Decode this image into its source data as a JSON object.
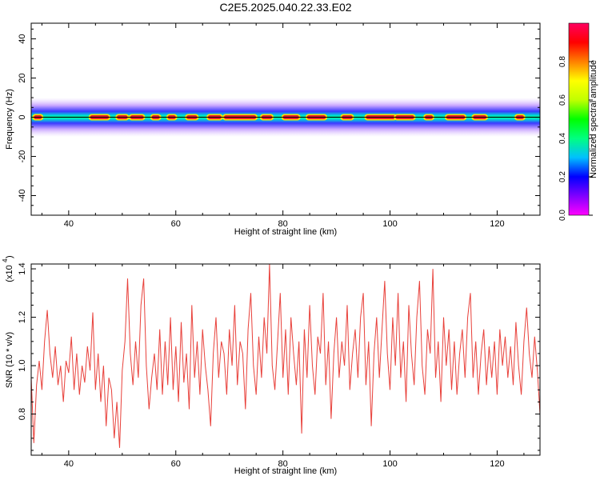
{
  "title": "C2E5.2025.040.22.33.E02",
  "chart_data": [
    {
      "type": "heatmap",
      "xlabel": "Height of straight line (km)",
      "ylabel": "Frequency (Hz)",
      "xlim": [
        33,
        128
      ],
      "ylim": [
        -50,
        48
      ],
      "xticks": [
        40,
        60,
        80,
        100,
        120
      ],
      "yticks": [
        -40,
        -20,
        0,
        20,
        40
      ],
      "band_center_hz": 0,
      "band_halfwidth_hz": 4,
      "hot_segments_km": [
        [
          33.5,
          35
        ],
        [
          44,
          47.5
        ],
        [
          49,
          51
        ],
        [
          51.5,
          54
        ],
        [
          55.5,
          57
        ],
        [
          58.5,
          60
        ],
        [
          62,
          64
        ],
        [
          66,
          68.5
        ],
        [
          69,
          75
        ],
        [
          76,
          78
        ],
        [
          80,
          83
        ],
        [
          84.5,
          88
        ],
        [
          91,
          93
        ],
        [
          95.5,
          101
        ],
        [
          101,
          104.5
        ],
        [
          106.5,
          108
        ],
        [
          110.5,
          114
        ],
        [
          115.5,
          118
        ],
        [
          123.5,
          125
        ]
      ],
      "colorbar": {
        "label": "Normalized spectral amplitude",
        "range": [
          0,
          1
        ],
        "ticks": [
          "0.0",
          "0.2",
          "0.4",
          "0.6",
          "0.8"
        ],
        "colors": [
          "#ff00ff",
          "#8000ff",
          "#0000ff",
          "#00c0ff",
          "#00ff80",
          "#00ff00",
          "#c0ff00",
          "#ffff00",
          "#ff8000",
          "#ff0000",
          "#ff0060"
        ]
      }
    },
    {
      "type": "line",
      "xlabel": "Height of straight line (km)",
      "ylabel": "SNR (10 * v/v)",
      "ylabel_exponent": "(x10",
      "exponent_power": "4",
      "xlim": [
        33,
        128
      ],
      "ylim": [
        0.63,
        1.42
      ],
      "xticks": [
        40,
        60,
        80,
        100,
        120
      ],
      "yticks": [
        0.8,
        1.0,
        1.2,
        1.4
      ],
      "ytick_labels": [
        "0.8",
        "1.0",
        "1.2",
        "1.4"
      ],
      "series": [
        {
          "color": "#e8403a",
          "x": [
            33,
            33.5,
            34,
            34.5,
            35,
            35.5,
            36,
            36.5,
            37,
            37.5,
            38,
            38.5,
            39,
            39.5,
            40,
            40.5,
            41,
            41.5,
            42,
            42.5,
            43,
            43.5,
            44,
            44.5,
            45,
            45.5,
            46,
            46.5,
            47,
            47.5,
            48,
            48.5,
            49,
            49.5,
            50,
            50.5,
            51,
            51.5,
            52,
            52.5,
            53,
            53.5,
            54,
            54.5,
            55,
            55.5,
            56,
            56.5,
            57,
            57.5,
            58,
            58.5,
            59,
            59.5,
            60,
            60.5,
            61,
            61.5,
            62,
            62.5,
            63,
            63.5,
            64,
            64.5,
            65,
            65.5,
            66,
            66.5,
            67,
            67.5,
            68,
            68.5,
            69,
            69.5,
            70,
            70.5,
            71,
            71.5,
            72,
            72.5,
            73,
            73.5,
            74,
            74.5,
            75,
            75.5,
            76,
            76.5,
            77,
            77.5,
            78,
            78.5,
            79,
            79.5,
            80,
            80.5,
            81,
            81.5,
            82,
            82.5,
            83,
            83.5,
            84,
            84.5,
            85,
            85.5,
            86,
            86.5,
            87,
            87.5,
            88,
            88.5,
            89,
            89.5,
            90,
            90.5,
            91,
            91.5,
            92,
            92.5,
            93,
            93.5,
            94,
            94.5,
            95,
            95.5,
            96,
            96.5,
            97,
            97.5,
            98,
            98.5,
            99,
            99.5,
            100,
            100.5,
            101,
            101.5,
            102,
            102.5,
            103,
            103.5,
            104,
            104.5,
            105,
            105.5,
            106,
            106.5,
            107,
            107.5,
            108,
            108.5,
            109,
            109.5,
            110,
            110.5,
            111,
            111.5,
            112,
            112.5,
            113,
            113.5,
            114,
            114.5,
            115,
            115.5,
            116,
            116.5,
            117,
            117.5,
            118,
            118.5,
            119,
            119.5,
            120,
            120.5,
            121,
            121.5,
            122,
            122.5,
            123,
            123.5,
            124,
            124.5,
            125,
            125.5,
            126,
            126.5,
            127,
            127.5,
            128
          ],
          "y": [
            0.95,
            0.68,
            0.92,
            1.02,
            0.9,
            1.1,
            1.23,
            1.05,
            0.95,
            1.08,
            0.92,
            1.0,
            0.85,
            1.02,
            0.97,
            1.12,
            0.9,
            1.05,
            0.88,
            1.0,
            0.93,
            1.08,
            0.98,
            1.22,
            0.9,
            1.05,
            0.85,
            1.0,
            0.75,
            0.95,
            0.9,
            0.7,
            0.85,
            0.66,
            0.98,
            1.1,
            1.36,
            1.05,
            0.92,
            1.1,
            0.95,
            1.25,
            1.36,
            1.0,
            0.82,
            0.95,
            1.05,
            0.9,
            1.15,
            0.88,
            1.1,
            0.92,
            1.2,
            0.9,
            1.08,
            0.85,
            1.18,
            0.93,
            1.05,
            0.82,
            1.25,
            0.95,
            1.1,
            0.88,
            1.15,
            1.0,
            0.9,
            0.75,
            1.05,
            1.2,
            0.95,
            1.1,
            1.05,
            0.88,
            1.15,
            1.0,
            1.25,
            0.92,
            1.1,
            1.05,
            0.82,
            1.15,
            1.3,
            1.0,
            0.88,
            1.12,
            0.95,
            1.2,
            1.05,
            1.42,
            1.0,
            0.9,
            1.1,
            1.3,
            0.95,
            1.15,
            0.88,
            1.2,
            1.05,
            0.92,
            1.1,
            0.72,
            1.15,
            0.95,
            1.25,
            1.0,
            0.88,
            1.12,
            1.05,
            1.3,
            0.92,
            1.1,
            0.78,
            1.05,
            1.2,
            0.95,
            1.1,
            1.0,
            1.25,
            0.9,
            1.05,
            1.15,
            0.95,
            1.2,
            1.3,
            0.92,
            1.1,
            0.75,
            1.05,
            1.2,
            0.95,
            1.15,
            1.35,
            1.05,
            0.9,
            1.2,
            1.0,
            1.3,
            0.95,
            1.1,
            0.85,
            1.25,
            1.05,
            0.92,
            1.2,
            1.35,
            1.0,
            0.88,
            1.15,
            1.05,
            1.4,
            0.95,
            1.1,
            0.85,
            1.2,
            1.0,
            1.15,
            0.9,
            1.1,
            0.88,
            1.05,
            1.15,
            0.95,
            1.2,
            1.3,
            0.95,
            1.1,
            0.88,
            1.05,
            1.15,
            0.92,
            1.08,
            0.95,
            1.1,
            0.88,
            1.15,
            1.0,
            1.12,
            0.95,
            1.08,
            0.92,
            1.18,
            1.0,
            0.88,
            1.1,
            1.24,
            1.05,
            0.95,
            1.12,
            0.98,
            0.8
          ]
        }
      ]
    }
  ]
}
